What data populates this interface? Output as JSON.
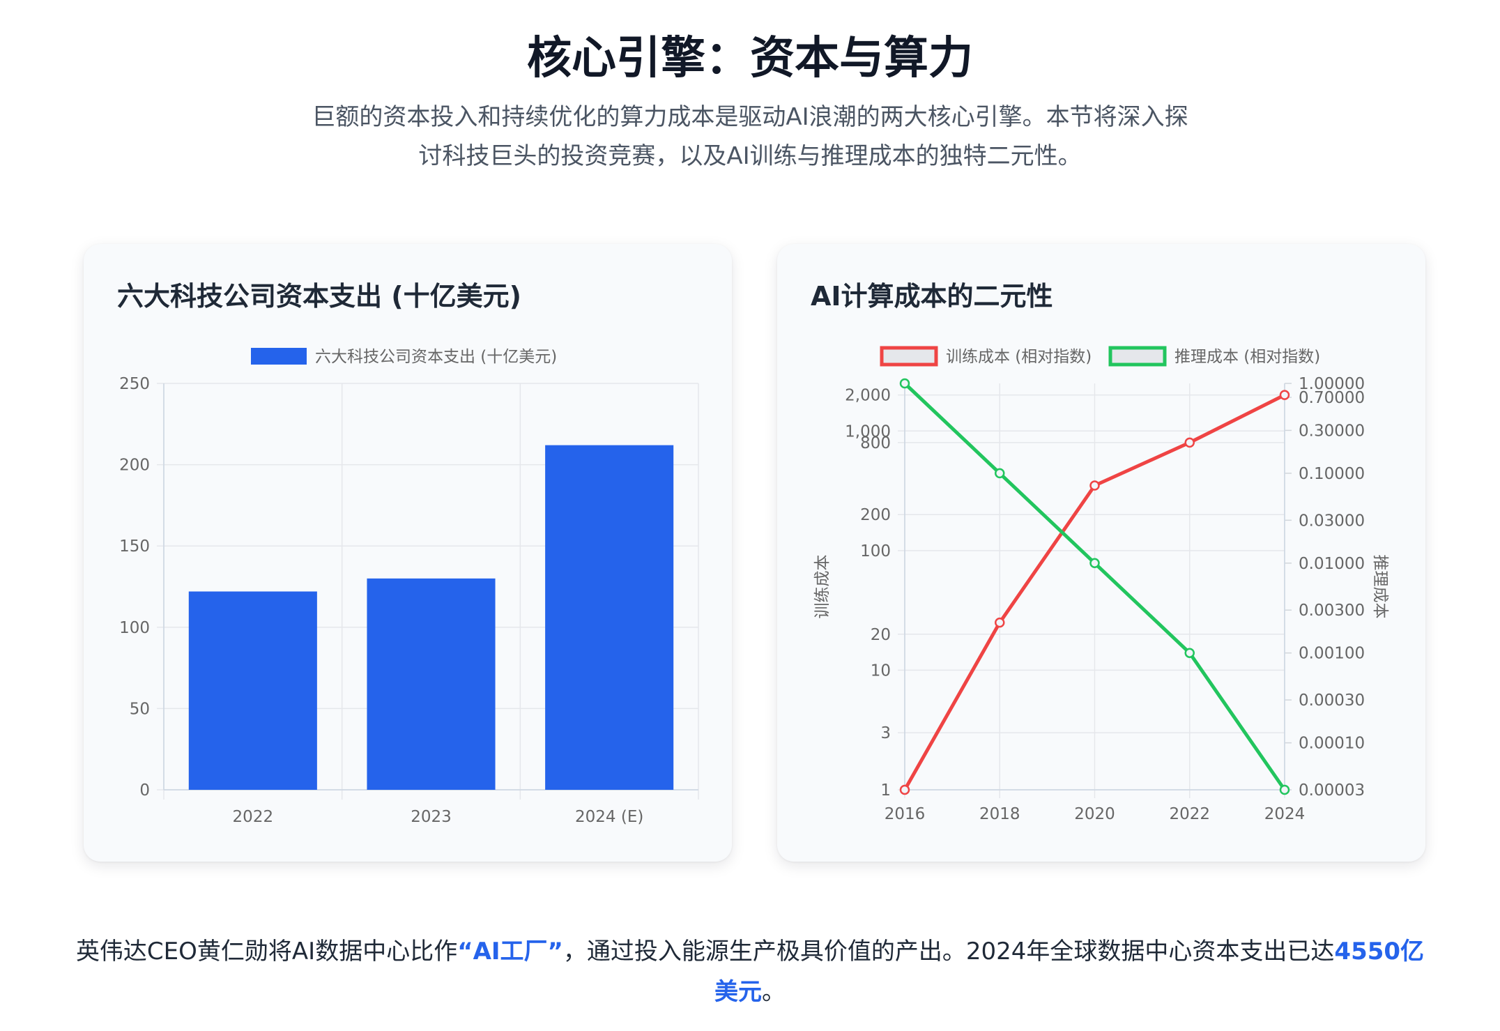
{
  "header": {
    "title": "核心引擎：资本与算力",
    "subtitle_line1": "巨额的资本投入和持续优化的算力成本是驱动AI浪潮的两大核心引擎。本节将深入探",
    "subtitle_line2": "讨科技巨头的投资竞赛，以及AI训练与推理成本的独特二元性。"
  },
  "chart_data": [
    {
      "type": "bar",
      "title": "六大科技公司资本支出 (十亿美元)",
      "categories": [
        "2022",
        "2023",
        "2024 (E)"
      ],
      "series": [
        {
          "name": "六大科技公司资本支出 (十亿美元)",
          "values": [
            122,
            130,
            212
          ],
          "color": "#2563eb"
        }
      ],
      "y_ticks": [
        "0",
        "50",
        "100",
        "150",
        "200",
        "250"
      ],
      "ylim": [
        0,
        250
      ],
      "legend": "top",
      "grid": true
    },
    {
      "type": "line",
      "title": "AI计算成本的二元性",
      "x": [
        "2016",
        "2018",
        "2020",
        "2022",
        "2024"
      ],
      "series": [
        {
          "name": "训练成本 (相对指数)",
          "axis": "left",
          "values": [
            1,
            25,
            350,
            800,
            2000
          ],
          "color": "#ef4444"
        },
        {
          "name": "推理成本 (相对指数)",
          "axis": "right",
          "values": [
            1.0,
            0.1,
            0.01,
            0.001,
            3e-05
          ],
          "color": "#22c55e"
        }
      ],
      "y_left": {
        "label": "训练成本",
        "scale": "log",
        "range": [
          1,
          2500
        ],
        "ticks": [
          {
            "v": 1,
            "t": "1"
          },
          {
            "v": 3,
            "t": "3"
          },
          {
            "v": 10,
            "t": "10"
          },
          {
            "v": 20,
            "t": "20"
          },
          {
            "v": 100,
            "t": "100"
          },
          {
            "v": 200,
            "t": "200"
          },
          {
            "v": 800,
            "t": "800"
          },
          {
            "v": 1000,
            "t": "1,000"
          },
          {
            "v": 2000,
            "t": "2,000"
          }
        ]
      },
      "y_right": {
        "label": "推理成本",
        "scale": "log",
        "range": [
          3e-05,
          1.0
        ],
        "ticks": [
          {
            "v": 3e-05,
            "t": "0.00003"
          },
          {
            "v": 0.0001,
            "t": "0.00010"
          },
          {
            "v": 0.0003,
            "t": "0.00030"
          },
          {
            "v": 0.001,
            "t": "0.00100"
          },
          {
            "v": 0.003,
            "t": "0.00300"
          },
          {
            "v": 0.01,
            "t": "0.01000"
          },
          {
            "v": 0.03,
            "t": "0.03000"
          },
          {
            "v": 0.1,
            "t": "0.10000"
          },
          {
            "v": 0.3,
            "t": "0.30000"
          },
          {
            "v": 0.7,
            "t": "0.70000"
          },
          {
            "v": 1.0,
            "t": "1.00000"
          }
        ]
      },
      "legend": "top",
      "grid": true
    }
  ],
  "footer": {
    "text_before": "英伟达CEO黄仁勋将AI数据中心比作",
    "highlight1": "“AI工厂”",
    "text_middle": "，通过投入能源生产极具价值的产出。2024年全球数据中心资本支出已达",
    "highlight2": "4550亿美元",
    "text_after": "。"
  }
}
